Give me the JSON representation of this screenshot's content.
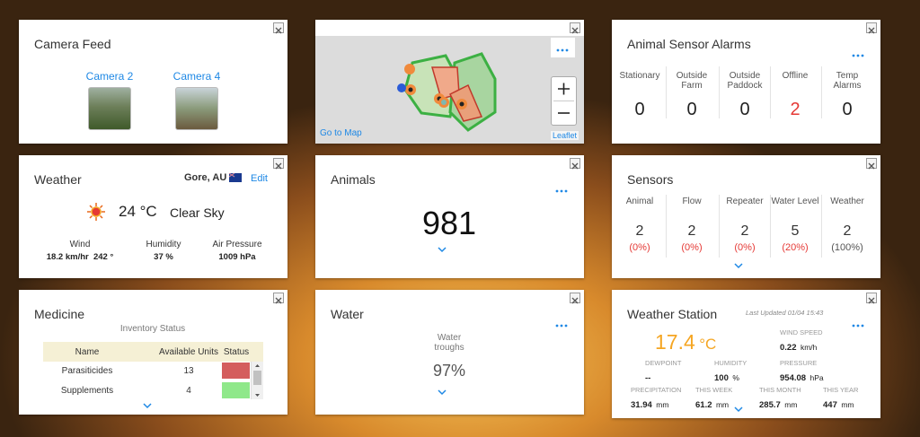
{
  "camera_feed": {
    "title": "Camera Feed",
    "cameras": [
      "Camera 2",
      "Camera 4"
    ]
  },
  "map": {
    "link": "Go to Map",
    "attribution": "Leaflet"
  },
  "animal_sensor_alarms": {
    "title": "Animal Sensor Alarms",
    "items": [
      {
        "label": "Stationary",
        "value": "0"
      },
      {
        "label": "Outside Farm",
        "value": "0"
      },
      {
        "label": "Outside Paddock",
        "value": "0"
      },
      {
        "label": "Offline",
        "value": "2",
        "color": "#e53935"
      },
      {
        "label": "Temp Alarms",
        "value": "0"
      }
    ]
  },
  "weather": {
    "title": "Weather",
    "location": "Gore, AU",
    "edit": "Edit",
    "temperature": "24 °C",
    "condition": "Clear Sky",
    "stats": [
      {
        "label": "Wind",
        "value": "18.2 km/hr  242 °"
      },
      {
        "label": "Humidity",
        "value": "37 %"
      },
      {
        "label": "Air Pressure",
        "value": "1009 hPa"
      }
    ]
  },
  "animals": {
    "title": "Animals",
    "count": "981"
  },
  "sensors": {
    "title": "Sensors",
    "items": [
      {
        "label": "Animal",
        "count": "2",
        "percent": "(0%)",
        "color": "#e53935"
      },
      {
        "label": "Flow",
        "count": "2",
        "percent": "(0%)",
        "color": "#e53935"
      },
      {
        "label": "Repeater",
        "count": "2",
        "percent": "(0%)",
        "color": "#e53935"
      },
      {
        "label": "Water Level",
        "count": "5",
        "percent": "(20%)",
        "color": "#e53935"
      },
      {
        "label": "Weather",
        "count": "2",
        "percent": "(100%)",
        "color": "#555555"
      }
    ]
  },
  "medicine": {
    "title": "Medicine",
    "subtitle": "Inventory Status",
    "table": {
      "header": [
        "Name",
        "Available Units",
        "Status"
      ],
      "rows": [
        {
          "name": "Parasiticides",
          "units": "13",
          "status": "#d45d5d"
        },
        {
          "name": "Supplements",
          "units": "4",
          "status": "#8fe88a"
        }
      ]
    }
  },
  "water": {
    "title": "Water",
    "label": "Water troughs",
    "value": "97%"
  },
  "weather_station": {
    "title": "Weather Station",
    "updated": "Last Updated 01/04 15:43",
    "temperature": {
      "value": "17.4",
      "unit": "°C"
    },
    "wind": {
      "label": "WIND SPEED",
      "value": "0.22",
      "unit": "km/h"
    },
    "middle": [
      {
        "label": "DEWPOINT",
        "value": "--",
        "unit": ""
      },
      {
        "label": "HUMIDITY",
        "value": "100",
        "unit": "%"
      },
      {
        "label": "PRESSURE",
        "value": "954.08",
        "unit": "hPa"
      }
    ],
    "bottom": [
      {
        "label": "PRECIPITATION",
        "value": "31.94",
        "unit": "mm"
      },
      {
        "label": "THIS WEEK",
        "value": "61.2",
        "unit": "mm"
      },
      {
        "label": "THIS MONTH",
        "value": "285.7",
        "unit": "mm"
      },
      {
        "label": "THIS YEAR",
        "value": "447",
        "unit": "mm"
      }
    ]
  }
}
